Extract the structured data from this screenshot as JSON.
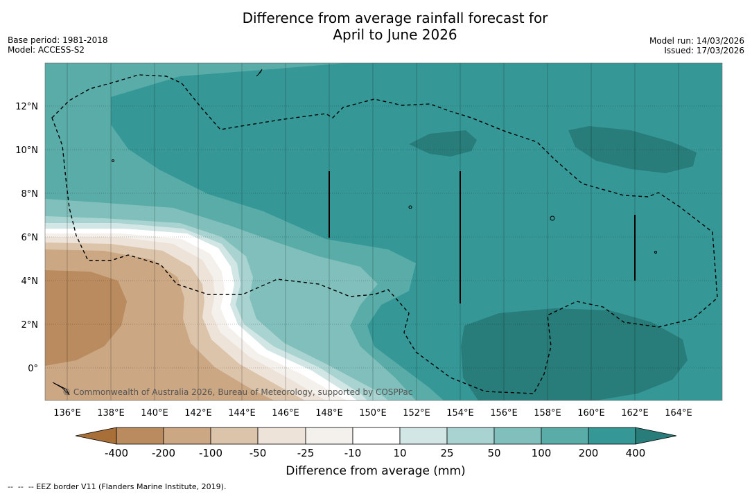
{
  "title_line1": "Difference from average rainfall forecast for",
  "title_line2": "April to June 2026",
  "base_period": "Base period: 1981-2018",
  "model": "Model: ACCESS-S2",
  "model_run": "Model run: 14/03/2026",
  "issued": "Issued: 17/03/2026",
  "copyright": "© Commonwealth of Australia 2026, Bureau of Meteorology, supported by COSPPac",
  "footer_note": "--  --  -- EEZ border V11 (Flanders Marine Institute, 2019).",
  "lat_labels": [
    "12°N",
    "10°N",
    "8°N",
    "6°N",
    "4°N",
    "2°N",
    "0°"
  ],
  "lon_labels": [
    "136°E",
    "138°E",
    "140°E",
    "142°E",
    "144°E",
    "146°E",
    "148°E",
    "150°E",
    "152°E",
    "154°E",
    "156°E",
    "158°E",
    "160°E",
    "162°E",
    "164°E"
  ],
  "colorbar": {
    "title": "Difference from average (mm)",
    "labels": [
      "-400",
      "-200",
      "-100",
      "-50",
      "-25",
      "-10",
      "10",
      "25",
      "50",
      "100",
      "200",
      "400"
    ],
    "colors": [
      "#a86f39",
      "#b98b5e",
      "#cba783",
      "#dcc4ab",
      "#eee3d8",
      "#f4f0ec",
      "#ffffff",
      "#d2e7e5",
      "#a9d3d0",
      "#80bfbb",
      "#5aaca8",
      "#369896",
      "#287c79"
    ]
  },
  "colors": {
    "deep_teal": "#287c79",
    "teal": "#369896",
    "mid_teal": "#5aaca8",
    "light_teal": "#80bfbb",
    "pale_teal": "#a9d3d0",
    "faint_teal": "#d2e7e5",
    "tan_light": "#eee3d8",
    "tan": "#dcc4ab",
    "tan_mid": "#cba783",
    "brown": "#b98b5e",
    "brown_dark": "#a86f39"
  }
}
